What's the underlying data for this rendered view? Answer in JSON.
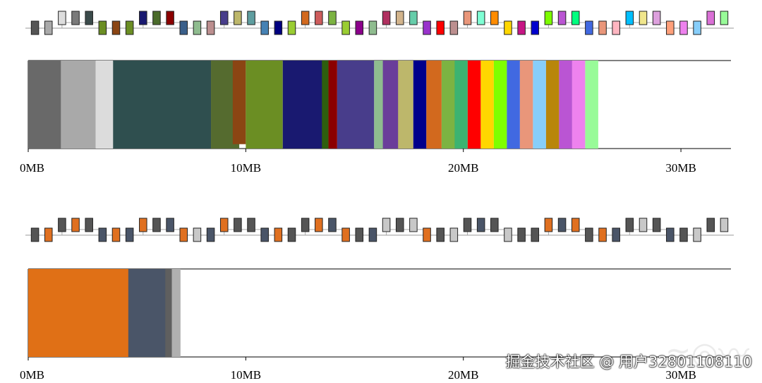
{
  "chart_data": [
    {
      "type": "memory-allocation-timeline",
      "memory_axis": {
        "unit": "MB",
        "ticks": [
          0,
          10,
          20,
          30
        ],
        "tick_labels": [
          "0MB",
          "10MB",
          "20MB",
          "30MB"
        ],
        "range": [
          0,
          32.3
        ]
      },
      "graph_row": {
        "node_count": 52,
        "node_colors": [
          "#555555",
          "#aaaaaa",
          "#dddddd",
          "#7a7a7a",
          "#3b4b4b",
          "#6b8e23",
          "#8b4513",
          "#6b8e23",
          "#191970",
          "#4b6b2b",
          "#8b0000",
          "#3a5f8a",
          "#8fbc8f",
          "#bc8f8f",
          "#483d8b",
          "#bdb76b",
          "#5f9ea0",
          "#4682b4",
          "#000080",
          "#9acd32",
          "#d2691e",
          "#cd5c5c",
          "#7cb342",
          "#9acd32",
          "#8b008b",
          "#8fbc8f",
          "#b03060",
          "#d2b48c",
          "#66cdaa",
          "#9932cc",
          "#ff0000",
          "#bc8f8f",
          "#e9967a",
          "#7fffd4",
          "#ff8c00",
          "#ffd700",
          "#c71585",
          "#0000cd",
          "#7cfc00",
          "#ba55d3",
          "#00ff7f",
          "#4169e1",
          "#e9967a",
          "#ffb6c1",
          "#00bfff",
          "#f0e68c",
          "#dda0dd",
          "#ffa07a",
          "#ee82ee",
          "#87cefa",
          "#da70d6",
          "#98fb98"
        ]
      },
      "blocks": [
        {
          "start": 0.0,
          "end": 1.7,
          "color": "#696969",
          "top": 0.0,
          "bottom": 1.0
        },
        {
          "start": 1.5,
          "end": 3.1,
          "color": "#a9a9a9",
          "top": 0.0,
          "bottom": 1.0
        },
        {
          "start": 3.1,
          "end": 3.9,
          "color": "#dcdcdc",
          "top": 0.0,
          "bottom": 1.0
        },
        {
          "start": 3.9,
          "end": 8.4,
          "color": "#2f4f4f",
          "top": 0.0,
          "bottom": 1.0
        },
        {
          "start": 8.4,
          "end": 9.7,
          "color": "#556b2f",
          "top": 0.0,
          "bottom": 1.0
        },
        {
          "start": 9.4,
          "end": 10.0,
          "color": "#8b4513",
          "top": 0.0,
          "bottom": 0.95
        },
        {
          "start": 10.0,
          "end": 11.7,
          "color": "#6b8e23",
          "top": 0.0,
          "bottom": 1.0
        },
        {
          "start": 11.7,
          "end": 13.6,
          "color": "#191970",
          "top": 0.0,
          "bottom": 1.0
        },
        {
          "start": 13.5,
          "end": 13.8,
          "color": "#2e5e0e",
          "top": 0.0,
          "bottom": 1.0
        },
        {
          "start": 13.8,
          "end": 14.2,
          "color": "#8b0000",
          "top": 0.0,
          "bottom": 1.0
        },
        {
          "start": 14.2,
          "end": 15.9,
          "color": "#483d8b",
          "top": 0.0,
          "bottom": 1.0
        },
        {
          "start": 15.9,
          "end": 16.6,
          "color": "#8fbc8f",
          "top": 0.0,
          "bottom": 1.0
        },
        {
          "start": 16.3,
          "end": 17.3,
          "color": "#6a3d9a",
          "top": 0.0,
          "bottom": 1.0
        },
        {
          "start": 17.0,
          "end": 17.7,
          "color": "#bdb76b",
          "top": 0.0,
          "bottom": 1.0
        },
        {
          "start": 17.7,
          "end": 18.3,
          "color": "#00008b",
          "top": 0.0,
          "bottom": 1.0
        },
        {
          "start": 18.3,
          "end": 19.0,
          "color": "#d2691e",
          "top": 0.0,
          "bottom": 1.0
        },
        {
          "start": 19.0,
          "end": 19.8,
          "color": "#7cb342",
          "top": 0.0,
          "bottom": 1.0
        },
        {
          "start": 19.6,
          "end": 20.2,
          "color": "#3cb371",
          "top": 0.0,
          "bottom": 1.0
        },
        {
          "start": 20.2,
          "end": 20.8,
          "color": "#ff0000",
          "top": 0.0,
          "bottom": 1.0
        },
        {
          "start": 20.8,
          "end": 21.4,
          "color": "#ffd700",
          "top": 0.0,
          "bottom": 1.0
        },
        {
          "start": 21.4,
          "end": 22.0,
          "color": "#7fff00",
          "top": 0.0,
          "bottom": 1.0
        },
        {
          "start": 22.0,
          "end": 22.6,
          "color": "#4169e1",
          "top": 0.0,
          "bottom": 1.0
        },
        {
          "start": 22.6,
          "end": 23.2,
          "color": "#e9967a",
          "top": 0.0,
          "bottom": 1.0
        },
        {
          "start": 23.2,
          "end": 23.8,
          "color": "#87cefa",
          "top": 0.0,
          "bottom": 1.0
        },
        {
          "start": 23.8,
          "end": 24.4,
          "color": "#b8860b",
          "top": 0.0,
          "bottom": 1.0
        },
        {
          "start": 24.4,
          "end": 25.0,
          "color": "#ba55d3",
          "top": 0.0,
          "bottom": 1.0
        },
        {
          "start": 25.0,
          "end": 25.6,
          "color": "#ee82ee",
          "top": 0.0,
          "bottom": 1.0
        },
        {
          "start": 25.6,
          "end": 26.2,
          "color": "#98fb98",
          "top": 0.0,
          "bottom": 1.0
        }
      ]
    },
    {
      "type": "memory-allocation-timeline",
      "memory_axis": {
        "unit": "MB",
        "ticks": [
          0,
          10,
          20,
          30
        ],
        "tick_labels": [
          "0MB",
          "10MB",
          "20MB",
          "30MB"
        ],
        "range": [
          0,
          32.3
        ]
      },
      "graph_row": {
        "node_count": 52,
        "node_colors": [
          "#555555",
          "#e07020",
          "#555555",
          "#e07020",
          "#555555",
          "#4a5568",
          "#e07020",
          "#4a5568",
          "#e07020",
          "#555555",
          "#4a5568",
          "#e07020",
          "#c8c8c8",
          "#4a5568",
          "#e07020",
          "#555555",
          "#555555",
          "#4a5568",
          "#e07020",
          "#555555",
          "#555555",
          "#e07020",
          "#4a5568",
          "#e07020",
          "#555555",
          "#4a5568",
          "#c8c8c8",
          "#555555",
          "#c8c8c8",
          "#e07020",
          "#555555",
          "#c8c8c8",
          "#555555",
          "#4a5568",
          "#555555",
          "#c8c8c8",
          "#555555",
          "#555555",
          "#e07020",
          "#4a5568",
          "#e07020",
          "#555555",
          "#e07020",
          "#4a5568",
          "#555555",
          "#c8c8c8",
          "#555555",
          "#4a5568",
          "#555555",
          "#c8c8c8",
          "#555555",
          "#c8c8c8"
        ]
      },
      "blocks": [
        {
          "start": 0.0,
          "end": 4.7,
          "color": "#e07016",
          "top": 0.0,
          "bottom": 1.0
        },
        {
          "start": 4.6,
          "end": 6.4,
          "color": "#4a5568",
          "top": 0.0,
          "bottom": 1.0
        },
        {
          "start": 6.3,
          "end": 6.7,
          "color": "#5f5f5f",
          "top": 0.0,
          "bottom": 1.0
        },
        {
          "start": 6.6,
          "end": 7.0,
          "color": "#b0b0b0",
          "top": 0.0,
          "bottom": 1.0
        }
      ]
    }
  ],
  "watermark": {
    "text": "掘金技术社区 @ 用户32801108110"
  }
}
